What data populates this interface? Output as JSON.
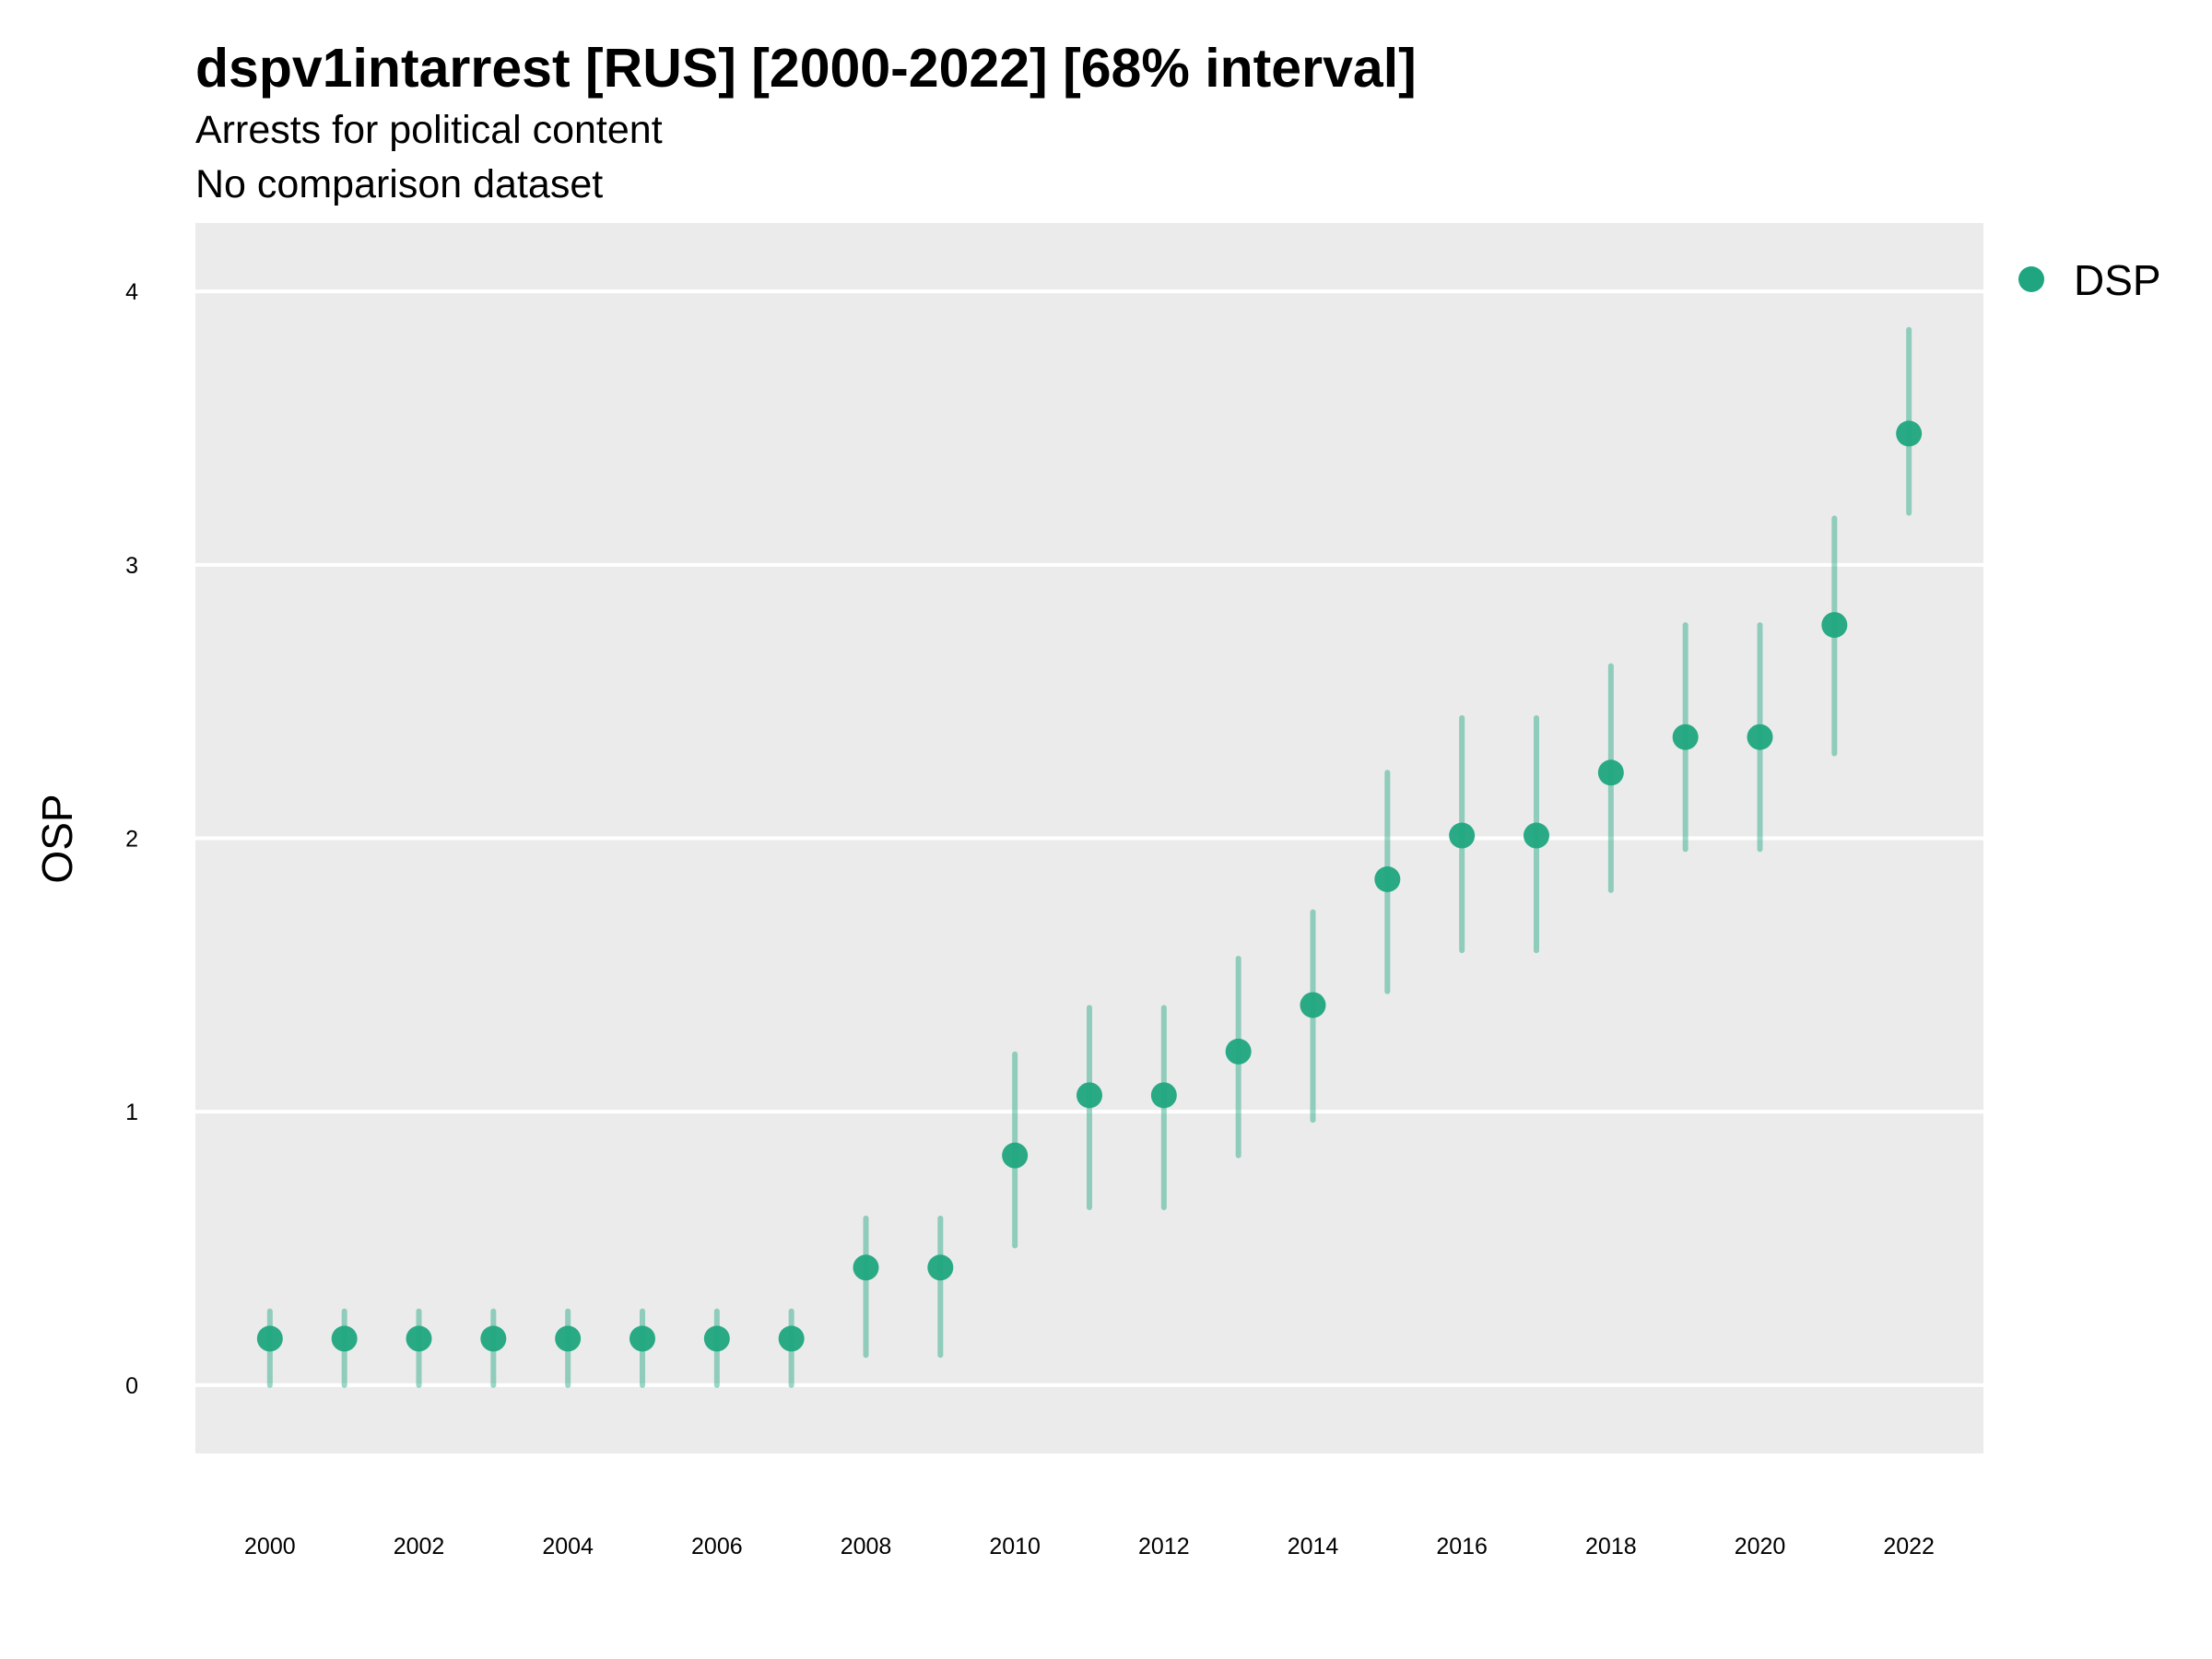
{
  "colors": {
    "point": "#1fa680",
    "interval": "#1fa680",
    "panel": "#ebebeb",
    "grid": "#ffffff"
  },
  "chart_data": {
    "type": "scatter",
    "title": "dspv1intarrest [RUS] [2000-2022] [68% interval]",
    "subtitle": "Arrests for political content",
    "caption_line2": "No comparison dataset",
    "xlabel": "",
    "ylabel": "OSP",
    "xlim": [
      1999,
      2023
    ],
    "ylim": [
      -0.25,
      4.25
    ],
    "x_ticks": [
      2000,
      2002,
      2004,
      2006,
      2008,
      2010,
      2012,
      2014,
      2016,
      2018,
      2020,
      2022
    ],
    "y_ticks": [
      0,
      1,
      2,
      3,
      4
    ],
    "legend": {
      "position": "right",
      "entries": [
        "DSP"
      ]
    },
    "series": [
      {
        "name": "DSP",
        "x": [
          2000,
          2001,
          2002,
          2003,
          2004,
          2005,
          2006,
          2007,
          2008,
          2009,
          2010,
          2011,
          2012,
          2013,
          2014,
          2015,
          2016,
          2017,
          2018,
          2019,
          2020,
          2021,
          2022
        ],
        "values": [
          0.17,
          0.17,
          0.17,
          0.17,
          0.17,
          0.17,
          0.17,
          0.17,
          0.43,
          0.43,
          0.84,
          1.06,
          1.06,
          1.22,
          1.39,
          1.85,
          2.01,
          2.01,
          2.24,
          2.37,
          2.37,
          2.78,
          3.48
        ],
        "lower": [
          0.0,
          0.0,
          0.0,
          0.0,
          0.0,
          0.0,
          0.0,
          0.0,
          0.11,
          0.11,
          0.51,
          0.65,
          0.65,
          0.84,
          0.97,
          1.44,
          1.59,
          1.59,
          1.81,
          1.96,
          1.96,
          2.31,
          3.19
        ],
        "upper": [
          0.27,
          0.27,
          0.27,
          0.27,
          0.27,
          0.27,
          0.27,
          0.27,
          0.61,
          0.61,
          1.21,
          1.38,
          1.38,
          1.56,
          1.73,
          2.24,
          2.44,
          2.44,
          2.63,
          2.78,
          2.78,
          3.17,
          3.86
        ]
      }
    ]
  }
}
